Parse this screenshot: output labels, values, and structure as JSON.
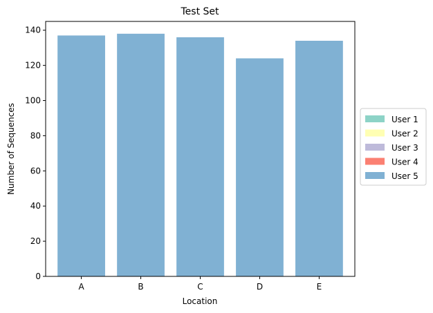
{
  "chart_data": {
    "type": "bar",
    "title": "Test Set",
    "xlabel": "Location",
    "ylabel": "Number of Sequences",
    "categories": [
      "A",
      "B",
      "C",
      "D",
      "E"
    ],
    "series": [
      {
        "name": "User 1",
        "color": "#8dd3c7",
        "values": [
          0,
          0,
          0,
          0,
          0
        ]
      },
      {
        "name": "User 2",
        "color": "#ffffb3",
        "values": [
          0,
          0,
          0,
          0,
          0
        ]
      },
      {
        "name": "User 3",
        "color": "#bebada",
        "values": [
          0,
          0,
          0,
          0,
          0
        ]
      },
      {
        "name": "User 4",
        "color": "#fb8072",
        "values": [
          0,
          0,
          0,
          0,
          0
        ]
      },
      {
        "name": "User 5",
        "color": "#80b1d3",
        "values": [
          137,
          138,
          136,
          124,
          134
        ]
      }
    ],
    "stacked": true,
    "ylim": [
      0,
      145
    ],
    "yticks": [
      0,
      20,
      40,
      60,
      80,
      100,
      120,
      140
    ],
    "grid": false,
    "legend_position": "center-right, outside plot"
  }
}
